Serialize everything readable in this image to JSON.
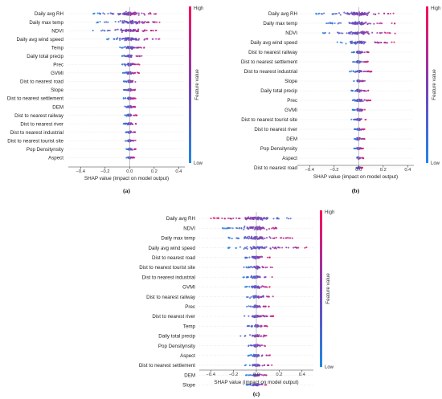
{
  "colorbar": {
    "high": "High",
    "low": "Low",
    "title": "Feature value",
    "low_color": "#1e88e5",
    "high_color": "#ff0d57"
  },
  "x_axis_label": "SHAP value (impact on model output)",
  "chart_data": [
    {
      "type": "scatter",
      "panel_label": "(a)",
      "xlabel": "SHAP value (impact on model output)",
      "xlim": [
        -0.5,
        0.45
      ],
      "xticks": [
        -0.4,
        -0.2,
        0.0,
        0.2,
        0.4
      ],
      "xtick_labels": [
        "−0.4",
        "−0.2",
        "0.0",
        "0.2",
        "0.4"
      ],
      "features": [
        {
          "name": "Daily avg RH",
          "min": -0.3,
          "max": 0.22,
          "spread": 1.0
        },
        {
          "name": "Daily max temp",
          "min": -0.28,
          "max": 0.3,
          "spread": 0.7
        },
        {
          "name": "NDVI",
          "min": -0.3,
          "max": 0.22,
          "spread": 0.75
        },
        {
          "name": "Daily avg wind speed",
          "min": -0.2,
          "max": 0.28,
          "spread": 0.7
        },
        {
          "name": "Temp",
          "min": -0.08,
          "max": 0.12,
          "spread": 0.55
        },
        {
          "name": "Daily total precip",
          "min": -0.08,
          "max": 0.1,
          "spread": 0.5
        },
        {
          "name": "Prec",
          "min": -0.06,
          "max": 0.08,
          "spread": 0.45
        },
        {
          "name": "GVMI",
          "min": -0.06,
          "max": 0.08,
          "spread": 0.45
        },
        {
          "name": "Dist to nearest road",
          "min": -0.05,
          "max": 0.06,
          "spread": 0.4
        },
        {
          "name": "Slope",
          "min": -0.06,
          "max": 0.05,
          "spread": 0.4
        },
        {
          "name": "Dist to nearest settlement",
          "min": -0.05,
          "max": 0.05,
          "spread": 0.4
        },
        {
          "name": "DEM",
          "min": -0.04,
          "max": 0.05,
          "spread": 0.35
        },
        {
          "name": "Dist to nearest railway",
          "min": -0.04,
          "max": 0.06,
          "spread": 0.35
        },
        {
          "name": "Dist to nearest river",
          "min": -0.05,
          "max": 0.06,
          "spread": 0.4
        },
        {
          "name": "Dist to nearest industrial",
          "min": -0.04,
          "max": 0.05,
          "spread": 0.35
        },
        {
          "name": "Dist to nearest tourist site",
          "min": -0.04,
          "max": 0.05,
          "spread": 0.35
        },
        {
          "name": "Pop  Densitynsity",
          "min": -0.03,
          "max": 0.05,
          "spread": 0.3
        },
        {
          "name": "Aspect",
          "min": -0.03,
          "max": 0.04,
          "spread": 0.3
        }
      ]
    },
    {
      "type": "scatter",
      "panel_label": "(b)",
      "xlabel": "SHAP value (impact on model output)",
      "xlim": [
        -0.5,
        0.45
      ],
      "xticks": [
        -0.4,
        -0.2,
        0.0,
        0.2,
        0.4
      ],
      "xtick_labels": [
        "−0.4",
        "−0.2",
        "0.0",
        "0.2",
        "0.4"
      ],
      "features": [
        {
          "name": "Daily avg RH",
          "min": -0.35,
          "max": 0.3,
          "spread": 1.0
        },
        {
          "name": "Daily max temp",
          "min": -0.3,
          "max": 0.32,
          "spread": 0.75
        },
        {
          "name": "NDVI",
          "min": -0.3,
          "max": 0.3,
          "spread": 0.75
        },
        {
          "name": "Daily avg wind speed",
          "min": -0.18,
          "max": 0.3,
          "spread": 0.65
        },
        {
          "name": "Dist to nearest railway",
          "min": -0.08,
          "max": 0.1,
          "spread": 0.45
        },
        {
          "name": "Dist to nearest settlement",
          "min": -0.05,
          "max": 0.08,
          "spread": 0.4
        },
        {
          "name": "Dist to nearest industrial",
          "min": -0.08,
          "max": 0.12,
          "spread": 0.45
        },
        {
          "name": "Slope",
          "min": -0.05,
          "max": 0.06,
          "spread": 0.4
        },
        {
          "name": "Daily total precip",
          "min": -0.06,
          "max": 0.08,
          "spread": 0.4
        },
        {
          "name": "Prec",
          "min": -0.06,
          "max": 0.1,
          "spread": 0.45
        },
        {
          "name": "GVMI",
          "min": -0.05,
          "max": 0.06,
          "spread": 0.4
        },
        {
          "name": "Dist to nearest tourist site",
          "min": -0.06,
          "max": 0.06,
          "spread": 0.4
        },
        {
          "name": "Dist to nearest river",
          "min": -0.04,
          "max": 0.05,
          "spread": 0.35
        },
        {
          "name": "DEM",
          "min": -0.04,
          "max": 0.05,
          "spread": 0.35
        },
        {
          "name": "Pop  Densitynsity",
          "min": -0.04,
          "max": 0.04,
          "spread": 0.3
        },
        {
          "name": "Aspect",
          "min": -0.03,
          "max": 0.04,
          "spread": 0.3
        },
        {
          "name": "Dist to nearest road",
          "min": -0.03,
          "max": 0.03,
          "spread": 0.3
        }
      ]
    },
    {
      "type": "scatter",
      "panel_label": "(c)",
      "xlabel": "SHAP value (impact on model output)",
      "xlim": [
        -0.5,
        0.5
      ],
      "xticks": [
        -0.4,
        -0.2,
        0.0,
        0.2,
        0.4
      ],
      "xtick_labels": [
        "−0.4",
        "−0.2",
        "0.0",
        "0.2",
        "0.4"
      ],
      "features": [
        {
          "name": "Daily avg RH",
          "min": -0.42,
          "max": 0.3,
          "spread": 1.0
        },
        {
          "name": "NDVI",
          "min": -0.3,
          "max": 0.22,
          "spread": 0.85
        },
        {
          "name": "Daily max temp",
          "min": -0.28,
          "max": 0.35,
          "spread": 0.75
        },
        {
          "name": "Daily avg wind speed",
          "min": -0.25,
          "max": 0.45,
          "spread": 0.75
        },
        {
          "name": "Dist to nearest road",
          "min": -0.12,
          "max": 0.12,
          "spread": 0.55
        },
        {
          "name": "Dist to nearest tourist site",
          "min": -0.12,
          "max": 0.15,
          "spread": 0.55
        },
        {
          "name": "Dist to nearest industrial",
          "min": -0.12,
          "max": 0.15,
          "spread": 0.5
        },
        {
          "name": "GVMI",
          "min": -0.1,
          "max": 0.12,
          "spread": 0.5
        },
        {
          "name": "Dist to nearest railway",
          "min": -0.1,
          "max": 0.15,
          "spread": 0.5
        },
        {
          "name": "Prec",
          "min": -0.1,
          "max": 0.12,
          "spread": 0.45
        },
        {
          "name": "Dist to nearest river",
          "min": -0.12,
          "max": 0.15,
          "spread": 0.45
        },
        {
          "name": "Temp",
          "min": -0.08,
          "max": 0.1,
          "spread": 0.45
        },
        {
          "name": "Daily total precip",
          "min": -0.15,
          "max": 0.12,
          "spread": 0.45
        },
        {
          "name": "Pop  Densitynsity",
          "min": -0.08,
          "max": 0.08,
          "spread": 0.4
        },
        {
          "name": "Aspect",
          "min": -0.08,
          "max": 0.12,
          "spread": 0.4
        },
        {
          "name": "Dist to nearest settlement",
          "min": -0.1,
          "max": 0.15,
          "spread": 0.4
        },
        {
          "name": "DEM",
          "min": -0.1,
          "max": 0.1,
          "spread": 0.4
        },
        {
          "name": "Slope",
          "min": -0.1,
          "max": 0.1,
          "spread": 0.4
        }
      ]
    }
  ]
}
